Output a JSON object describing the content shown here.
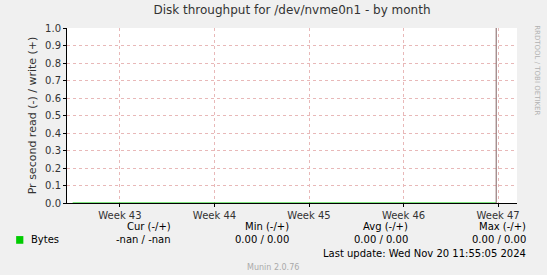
{
  "chart_data": {
    "type": "line",
    "title": "Disk throughput for /dev/nvme0n1 - by month",
    "y_label": "Pr second read (-) / write (+)",
    "xlim": [
      42.44,
      47.2
    ],
    "xticks": [
      {
        "value": 43,
        "label": "Week 43"
      },
      {
        "value": 44,
        "label": "Week 44"
      },
      {
        "value": 45,
        "label": "Week 45"
      },
      {
        "value": 46,
        "label": "Week 46"
      },
      {
        "value": 47,
        "label": "Week 47"
      }
    ],
    "ylim": [
      0,
      1
    ],
    "yticks": [
      {
        "value": 0,
        "label": "0.0"
      },
      0.1,
      0.2,
      0.3,
      0.4,
      0.5,
      0.6,
      0.7,
      0.8,
      0.9,
      {
        "value": 1,
        "label": "1.0"
      }
    ],
    "grid": true,
    "series": [
      {
        "name": "Bytes",
        "color": "#00cc00",
        "x": [
          42.5,
          43,
          44,
          45,
          46,
          46.98
        ],
        "values": [
          0,
          0,
          0,
          0,
          0,
          0
        ]
      }
    ],
    "now_line": {
      "x": 46.98,
      "color": "#7f5f5f"
    },
    "legend_table": {
      "headers": [
        "Cur (-/+)",
        "Min (-/+)",
        "Avg (-/+)",
        "Max (-/+)"
      ],
      "rows": [
        {
          "name": "Bytes",
          "cells": [
            "-nan / -nan",
            "0.00 / 0.00",
            "0.00 / 0.00",
            "0.00 / 0.00"
          ]
        }
      ]
    },
    "footer": "Last update: Wed Nov 20 11:55:05 2024",
    "credit": "Munin 2.0.76",
    "watermark": "RRDTOOL / TOBI OETIKER"
  }
}
